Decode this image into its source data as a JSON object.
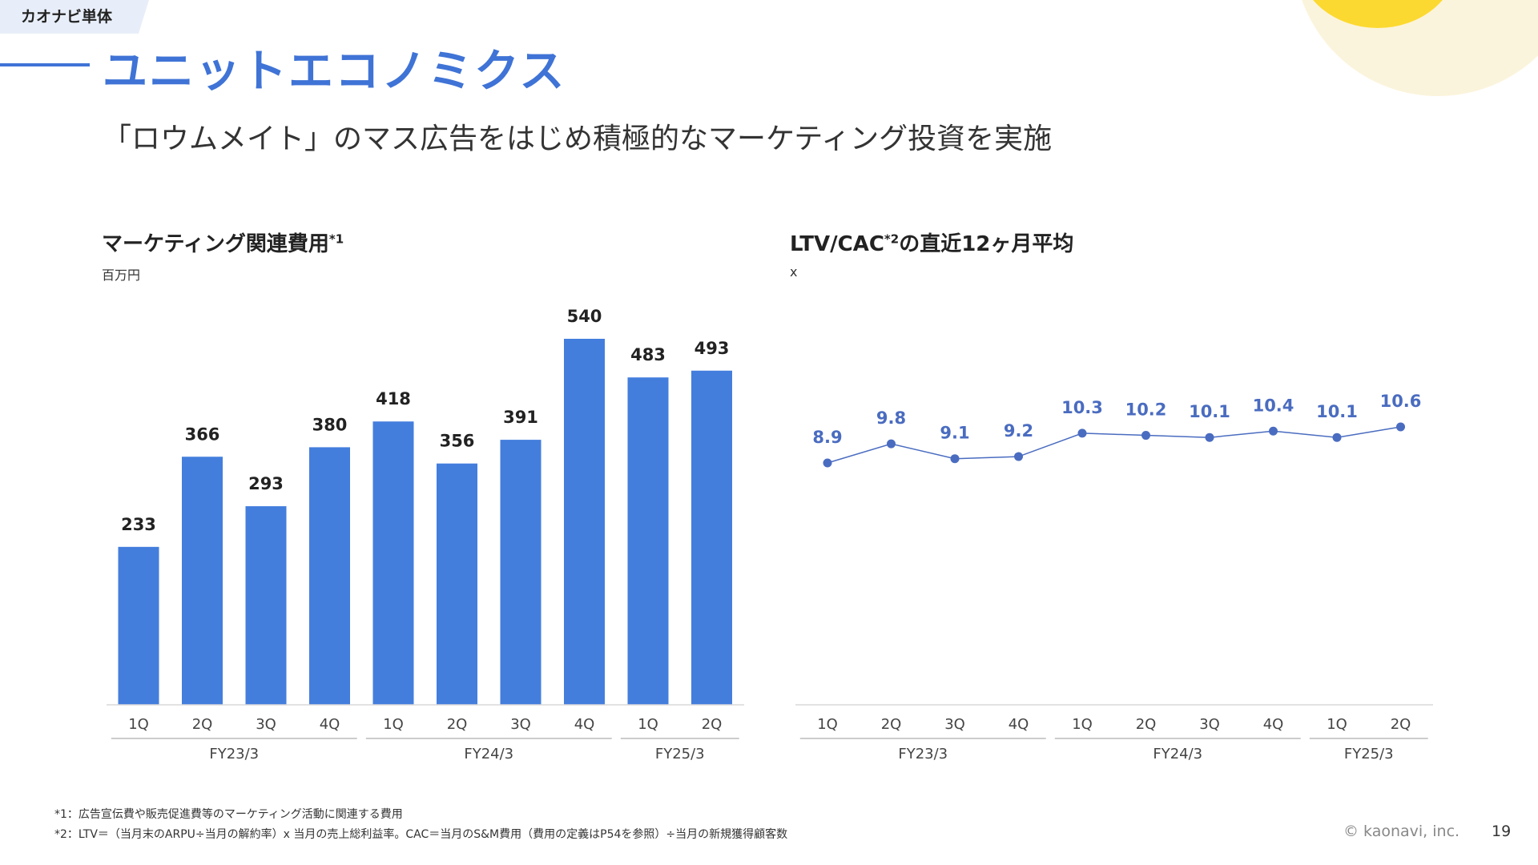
{
  "header": {
    "tag": "カオナビ単体",
    "title": "ユニットエコノミクス",
    "subtitle": "「ロウムメイト」のマス広告をはじめ積極的なマーケティング投資を実施"
  },
  "colors": {
    "accent": "#3f73d6",
    "bar": "#437edd",
    "line": "#4a6cc0"
  },
  "left_panel": {
    "title": "マーケティング関連費用",
    "title_sup": "*1",
    "unit": "百万円"
  },
  "right_panel": {
    "title": "LTV/CAC",
    "title_sup": "*2",
    "title_rest": "の直近12ヶ月平均",
    "unit": "x"
  },
  "chart_data": [
    {
      "type": "bar",
      "categories": [
        "1Q",
        "2Q",
        "3Q",
        "4Q",
        "1Q",
        "2Q",
        "3Q",
        "4Q",
        "1Q",
        "2Q"
      ],
      "groups": [
        {
          "label": "FY23/3",
          "count": 4
        },
        {
          "label": "FY24/3",
          "count": 4
        },
        {
          "label": "FY25/3",
          "count": 2
        }
      ],
      "values": [
        233,
        366,
        293,
        380,
        418,
        356,
        391,
        540,
        483,
        493
      ],
      "ylim": [
        0,
        540
      ]
    },
    {
      "type": "line",
      "categories": [
        "1Q",
        "2Q",
        "3Q",
        "4Q",
        "1Q",
        "2Q",
        "3Q",
        "4Q",
        "1Q",
        "2Q"
      ],
      "groups": [
        {
          "label": "FY23/3",
          "count": 4
        },
        {
          "label": "FY24/3",
          "count": 4
        },
        {
          "label": "FY25/3",
          "count": 2
        }
      ],
      "values": [
        8.9,
        9.8,
        9.1,
        9.2,
        10.3,
        10.2,
        10.1,
        10.4,
        10.1,
        10.6
      ],
      "labels": [
        "8.9",
        "9.8",
        "9.1",
        "9.2",
        "10.3",
        "10.2",
        "10.1",
        "10.4",
        "10.1",
        "10.6"
      ],
      "ylim": [
        0,
        13
      ]
    }
  ],
  "footnotes": [
    "*1：広告宣伝費や販売促進費等のマーケティング活動に関連する費用",
    "*2：LTV＝（当月末のARPU÷当月の解約率）x 当月の売上総利益率。CAC＝当月のS&M費用（費用の定義はP54を参照）÷当月の新規獲得顧客数"
  ],
  "footer": {
    "copyright": "© kaonavi, inc.",
    "page": "19"
  }
}
